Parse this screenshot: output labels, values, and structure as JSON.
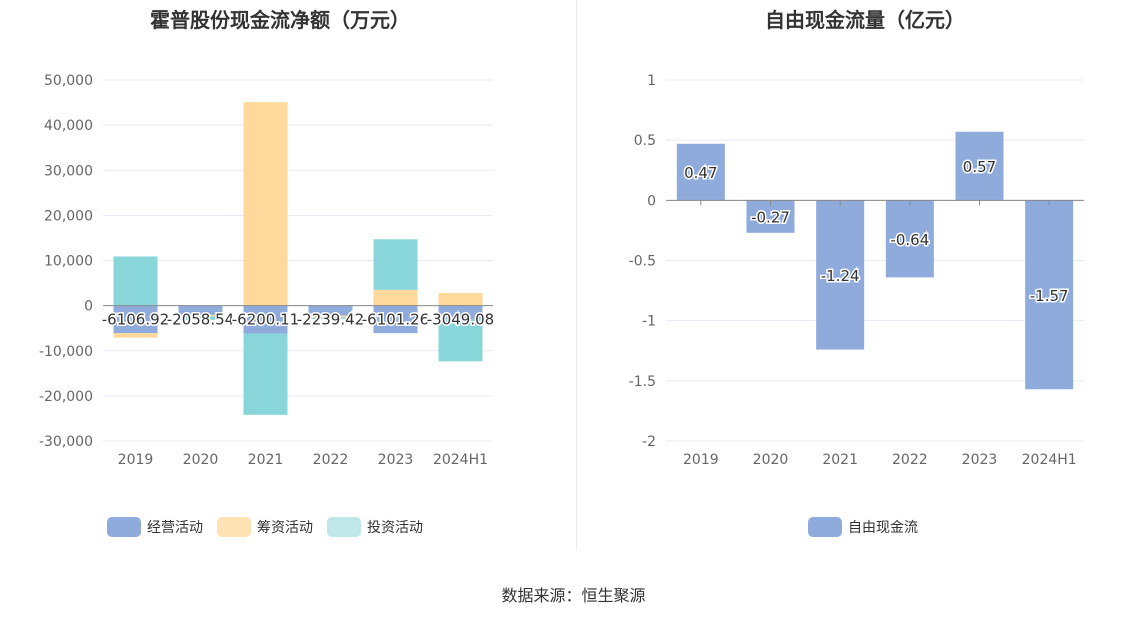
{
  "source_label": "数据来源：恒生聚源",
  "chart_data": [
    {
      "type": "bar",
      "stacked": true,
      "title": "霍普股份现金流净额（万元）",
      "categories": [
        "2019",
        "2020",
        "2021",
        "2022",
        "2023",
        "2024H1"
      ],
      "ylim": [
        -30000,
        50000
      ],
      "yticks": [
        50000,
        40000,
        30000,
        20000,
        10000,
        0,
        -10000,
        -20000,
        -30000
      ],
      "ytick_labels": [
        "50,000",
        "40,000",
        "30,000",
        "20,000",
        "10,000",
        "0",
        "-10,000",
        "-20,000",
        "-30,000"
      ],
      "legend_position": "bottom",
      "series": [
        {
          "name": "经营活动",
          "color": "#8eabdc",
          "values": [
            -6106.92,
            -2058.54,
            -6200.11,
            -2239.42,
            -6101.26,
            -3049.08
          ]
        },
        {
          "name": "筹资活动",
          "color": "#ffd99b",
          "values": [
            -1000,
            -300,
            45100,
            -400,
            3500,
            2800
          ]
        },
        {
          "name": "投资活动",
          "color": "#88d5da",
          "values": [
            10900,
            -800,
            -18000,
            -300,
            11200,
            -9300
          ]
        }
      ],
      "data_labels": [
        "-6106.92",
        "-2058.54",
        "-6200.11",
        "-2239.42",
        "-6101.26",
        "-3049.08"
      ]
    },
    {
      "type": "bar",
      "title": "自由现金流量（亿元）",
      "categories": [
        "2019",
        "2020",
        "2021",
        "2022",
        "2023",
        "2024H1"
      ],
      "ylim": [
        -2,
        1
      ],
      "yticks": [
        1,
        0.5,
        0,
        -0.5,
        -1,
        -1.5,
        -2
      ],
      "ytick_labels": [
        "1",
        "0.5",
        "0",
        "-0.5",
        "-1",
        "-1.5",
        "-2"
      ],
      "legend_position": "bottom",
      "series": [
        {
          "name": "自由现金流",
          "color": "#8eabdc",
          "values": [
            0.47,
            -0.27,
            -1.24,
            -0.64,
            0.57,
            -1.57
          ]
        }
      ],
      "data_labels": [
        "0.47",
        "-0.27",
        "-1.24",
        "-0.64",
        "0.57",
        "-1.57"
      ]
    }
  ]
}
